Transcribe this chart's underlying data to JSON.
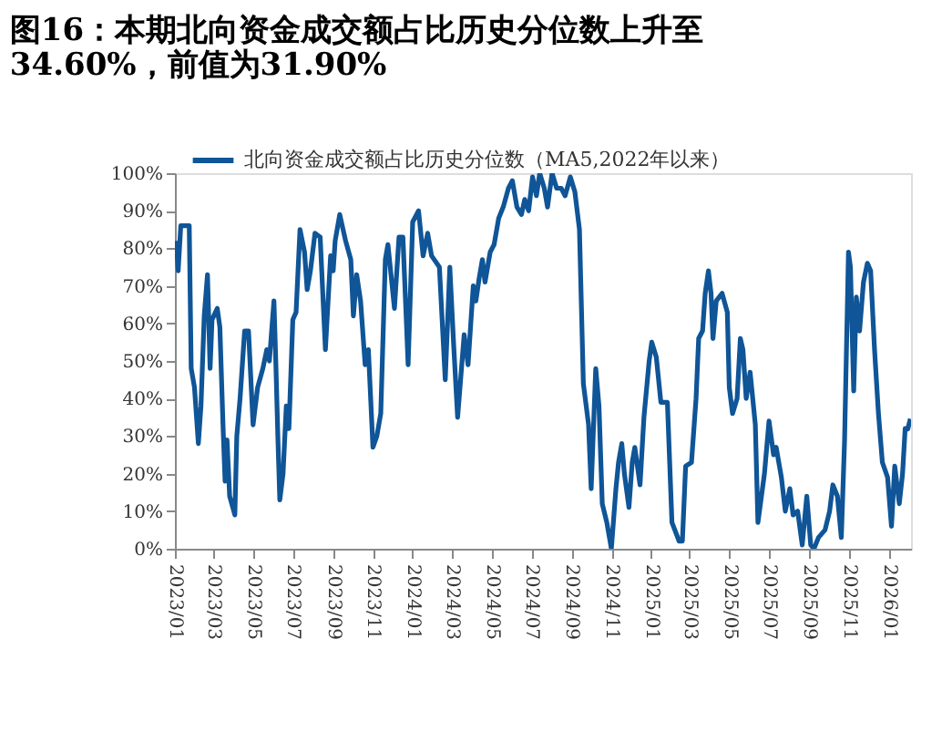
{
  "chart_data": {
    "type": "line",
    "title": "图16：本期北向资金成交额占比历史分位数上升至34.60%，前值为31.90%",
    "x": [
      "2023-01-03",
      "2023-01-06",
      "2023-01-10",
      "2023-01-23",
      "2023-01-26",
      "2023-01-31",
      "2023-02-06",
      "2023-02-10",
      "2023-02-15",
      "2023-02-20",
      "2023-02-24",
      "2023-02-27",
      "2023-03-07",
      "2023-03-11",
      "2023-03-16",
      "2023-03-19",
      "2023-03-22",
      "2023-03-26",
      "2023-04-03",
      "2023-04-06",
      "2023-04-11",
      "2023-04-18",
      "2023-04-24",
      "2023-05-01",
      "2023-05-08",
      "2023-05-16",
      "2023-05-22",
      "2023-05-26",
      "2023-06-02",
      "2023-06-05",
      "2023-06-08",
      "2023-06-11",
      "2023-06-16",
      "2023-06-21",
      "2023-06-25",
      "2023-07-01",
      "2023-07-06",
      "2023-07-12",
      "2023-07-19",
      "2023-07-23",
      "2023-07-28",
      "2023-08-04",
      "2023-08-12",
      "2023-08-20",
      "2023-08-28",
      "2023-09-01",
      "2023-09-04",
      "2023-09-11",
      "2023-09-20",
      "2023-09-28",
      "2023-10-02",
      "2023-10-07",
      "2023-10-13",
      "2023-10-20",
      "2023-10-25",
      "2023-11-01",
      "2023-11-07",
      "2023-11-13",
      "2023-11-20",
      "2023-11-24",
      "2023-12-04",
      "2023-12-11",
      "2023-12-17",
      "2023-12-25",
      "2024-01-01",
      "2024-01-10",
      "2024-01-17",
      "2024-01-24",
      "2024-01-30",
      "2024-02-11",
      "2024-02-20",
      "2024-02-27",
      "2024-03-04",
      "2024-03-10",
      "2024-03-15",
      "2024-03-20",
      "2024-03-26",
      "2024-04-03",
      "2024-04-07",
      "2024-04-12",
      "2024-04-17",
      "2024-04-21",
      "2024-04-29",
      "2024-05-05",
      "2024-05-12",
      "2024-05-19",
      "2024-05-27",
      "2024-06-02",
      "2024-06-09",
      "2024-06-16",
      "2024-06-21",
      "2024-06-27",
      "2024-07-03",
      "2024-07-09",
      "2024-07-14",
      "2024-07-21",
      "2024-07-26",
      "2024-08-02",
      "2024-08-09",
      "2024-08-16",
      "2024-08-22",
      "2024-08-30",
      "2024-09-06",
      "2024-09-13",
      "2024-09-19",
      "2024-09-27",
      "2024-10-01",
      "2024-10-08",
      "2024-10-13",
      "2024-10-18",
      "2024-10-25",
      "2024-11-01",
      "2024-11-08",
      "2024-11-12",
      "2024-11-17",
      "2024-11-21",
      "2024-11-28",
      "2024-12-03",
      "2024-12-07",
      "2024-12-15",
      "2024-12-21",
      "2024-12-29",
      "2025-01-02",
      "2025-01-09",
      "2025-01-16",
      "2025-01-26",
      "2025-02-02",
      "2025-02-13",
      "2025-02-18",
      "2025-02-23",
      "2025-03-04",
      "2025-03-11",
      "2025-03-15",
      "2025-03-21",
      "2025-03-25",
      "2025-03-30",
      "2025-04-03",
      "2025-04-06",
      "2025-04-11",
      "2025-04-20",
      "2025-04-28",
      "2025-05-01",
      "2025-05-06",
      "2025-05-13",
      "2025-05-18",
      "2025-05-22",
      "2025-05-27",
      "2025-06-02",
      "2025-06-10",
      "2025-06-14",
      "2025-06-24",
      "2025-07-01",
      "2025-07-08",
      "2025-07-12",
      "2025-07-20",
      "2025-07-26",
      "2025-08-02",
      "2025-08-07",
      "2025-08-14",
      "2025-08-21",
      "2025-08-28",
      "2025-09-03",
      "2025-09-08",
      "2025-09-15",
      "2025-09-25",
      "2025-10-02",
      "2025-10-07",
      "2025-10-14",
      "2025-10-20",
      "2025-10-25",
      "2025-10-31",
      "2025-11-03",
      "2025-11-08",
      "2025-11-12",
      "2025-11-17",
      "2025-11-23",
      "2025-11-29",
      "2025-12-04",
      "2025-12-10",
      "2025-12-16",
      "2025-12-22",
      "2025-12-30",
      "2026-01-05",
      "2026-01-10",
      "2026-01-17",
      "2026-01-22",
      "2026-01-26",
      "2026-01-30",
      "2026-02-03"
    ],
    "series": [
      {
        "name": "北向资金成交额占比历史分位数（MA5,2022年以来）",
        "color": "#0f5597",
        "values": [
          82,
          74,
          86,
          86,
          48,
          43,
          28,
          38,
          62,
          73,
          48,
          61,
          64,
          59,
          32,
          18,
          29,
          14,
          9,
          30,
          40,
          58,
          58,
          33,
          43,
          48,
          53,
          50,
          66,
          49,
          30,
          13,
          20,
          38,
          32,
          61,
          63,
          85,
          79,
          69,
          74,
          84,
          83,
          53,
          78,
          74,
          82,
          89,
          82,
          77,
          62,
          73,
          66,
          49,
          53,
          27,
          30,
          36,
          77,
          81,
          64,
          83,
          83,
          49,
          87,
          90,
          78,
          84,
          78,
          75,
          45,
          75,
          54,
          35,
          46,
          57,
          49,
          70,
          66,
          72,
          77,
          71,
          79,
          81,
          88,
          91,
          96,
          98,
          91,
          89,
          93,
          90,
          99,
          94,
          100,
          96,
          91,
          100,
          96,
          96,
          94,
          99,
          95,
          85,
          44,
          33,
          16,
          48,
          38,
          12,
          7,
          0,
          16,
          23,
          28,
          20,
          11,
          23,
          27,
          17,
          35,
          50,
          55,
          51,
          39,
          39,
          7,
          2,
          2,
          22,
          23,
          40,
          56,
          58,
          68,
          74,
          68,
          56,
          66,
          68,
          63,
          43,
          36,
          40,
          56,
          53,
          40,
          47,
          33,
          7,
          20,
          34,
          25,
          27,
          19,
          10,
          16,
          9,
          10,
          1,
          14,
          1,
          0,
          3,
          5,
          10,
          17,
          14,
          3,
          29,
          79,
          75,
          42,
          67,
          58,
          71,
          76,
          74,
          53,
          36,
          23,
          19,
          6,
          22,
          12,
          20,
          32,
          31.9,
          34.6
        ]
      }
    ],
    "xlim": [
      "2023-01-01",
      "2026-02-04"
    ],
    "xticks": [
      {
        "value": "2023-01-01",
        "label": "2023/01"
      },
      {
        "value": "2023-03-01",
        "label": "2023/03"
      },
      {
        "value": "2023-05-01",
        "label": "2023/05"
      },
      {
        "value": "2023-07-01",
        "label": "2023/07"
      },
      {
        "value": "2023-09-01",
        "label": "2023/09"
      },
      {
        "value": "2023-11-01",
        "label": "2023/11"
      },
      {
        "value": "2024-01-01",
        "label": "2024/01"
      },
      {
        "value": "2024-03-01",
        "label": "2024/03"
      },
      {
        "value": "2024-05-01",
        "label": "2024/05"
      },
      {
        "value": "2024-07-01",
        "label": "2024/07"
      },
      {
        "value": "2024-09-01",
        "label": "2024/09"
      },
      {
        "value": "2024-11-01",
        "label": "2024/11"
      },
      {
        "value": "2025-01-01",
        "label": "2025/01"
      },
      {
        "value": "2025-03-01",
        "label": "2025/03"
      },
      {
        "value": "2025-05-01",
        "label": "2025/05"
      },
      {
        "value": "2025-07-01",
        "label": "2025/07"
      },
      {
        "value": "2025-09-01",
        "label": "2025/09"
      },
      {
        "value": "2025-11-01",
        "label": "2025/11"
      },
      {
        "value": "2026-01-01",
        "label": "2026/01"
      }
    ],
    "ylim": [
      0,
      100
    ],
    "yticks": [
      {
        "value": 0,
        "label": "0%"
      },
      {
        "value": 10,
        "label": "10%"
      },
      {
        "value": 20,
        "label": "20%"
      },
      {
        "value": 30,
        "label": "30%"
      },
      {
        "value": 40,
        "label": "40%"
      },
      {
        "value": 50,
        "label": "50%"
      },
      {
        "value": 60,
        "label": "60%"
      },
      {
        "value": 70,
        "label": "70%"
      },
      {
        "value": 80,
        "label": "80%"
      },
      {
        "value": 90,
        "label": "90%"
      },
      {
        "value": 100,
        "label": "100%"
      }
    ],
    "grid": false,
    "legend": "top left",
    "line_style": "solid",
    "marker": "none"
  }
}
